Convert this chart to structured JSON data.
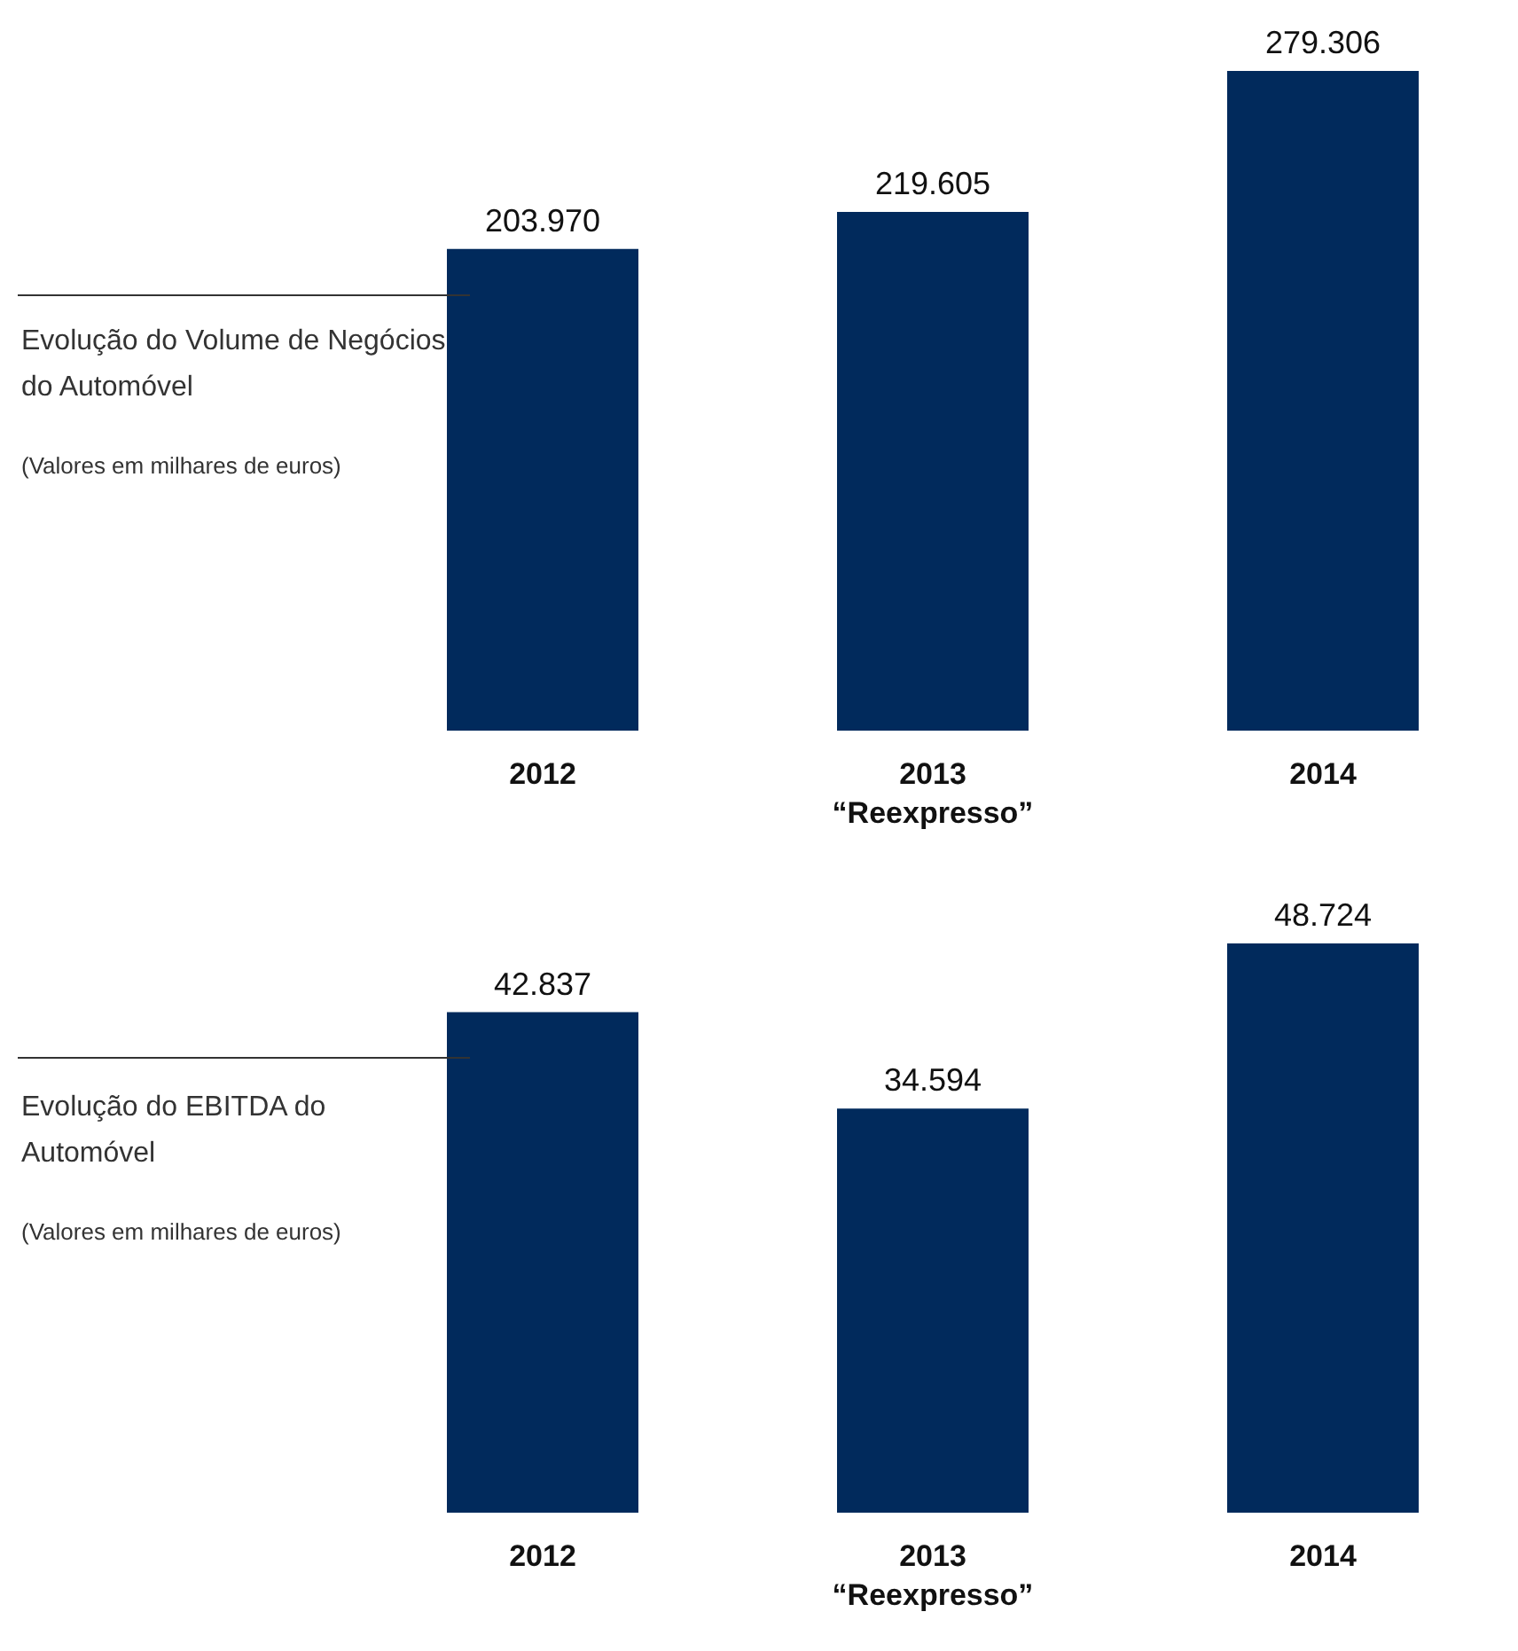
{
  "chart_data": [
    {
      "type": "bar",
      "title": "Evolução do Volume de Negócios do Automóvel",
      "subtitle": "(Valores em milhares de euros)",
      "categories": [
        "2012",
        "2013\n“Reexpresso”",
        "2014"
      ],
      "values": [
        203970,
        219605,
        279306
      ],
      "value_labels": [
        "203.970",
        "219.605",
        "279.306"
      ],
      "color": "#012a5c"
    },
    {
      "type": "bar",
      "title": "Evolução do EBITDA do Automóvel",
      "subtitle": "(Valores em milhares de euros)",
      "categories": [
        "2012",
        "2013\n“Reexpresso”",
        "2014"
      ],
      "values": [
        42837,
        34594,
        48724
      ],
      "value_labels": [
        "42.837",
        "34.594",
        "48.724"
      ],
      "color": "#012a5c"
    }
  ]
}
